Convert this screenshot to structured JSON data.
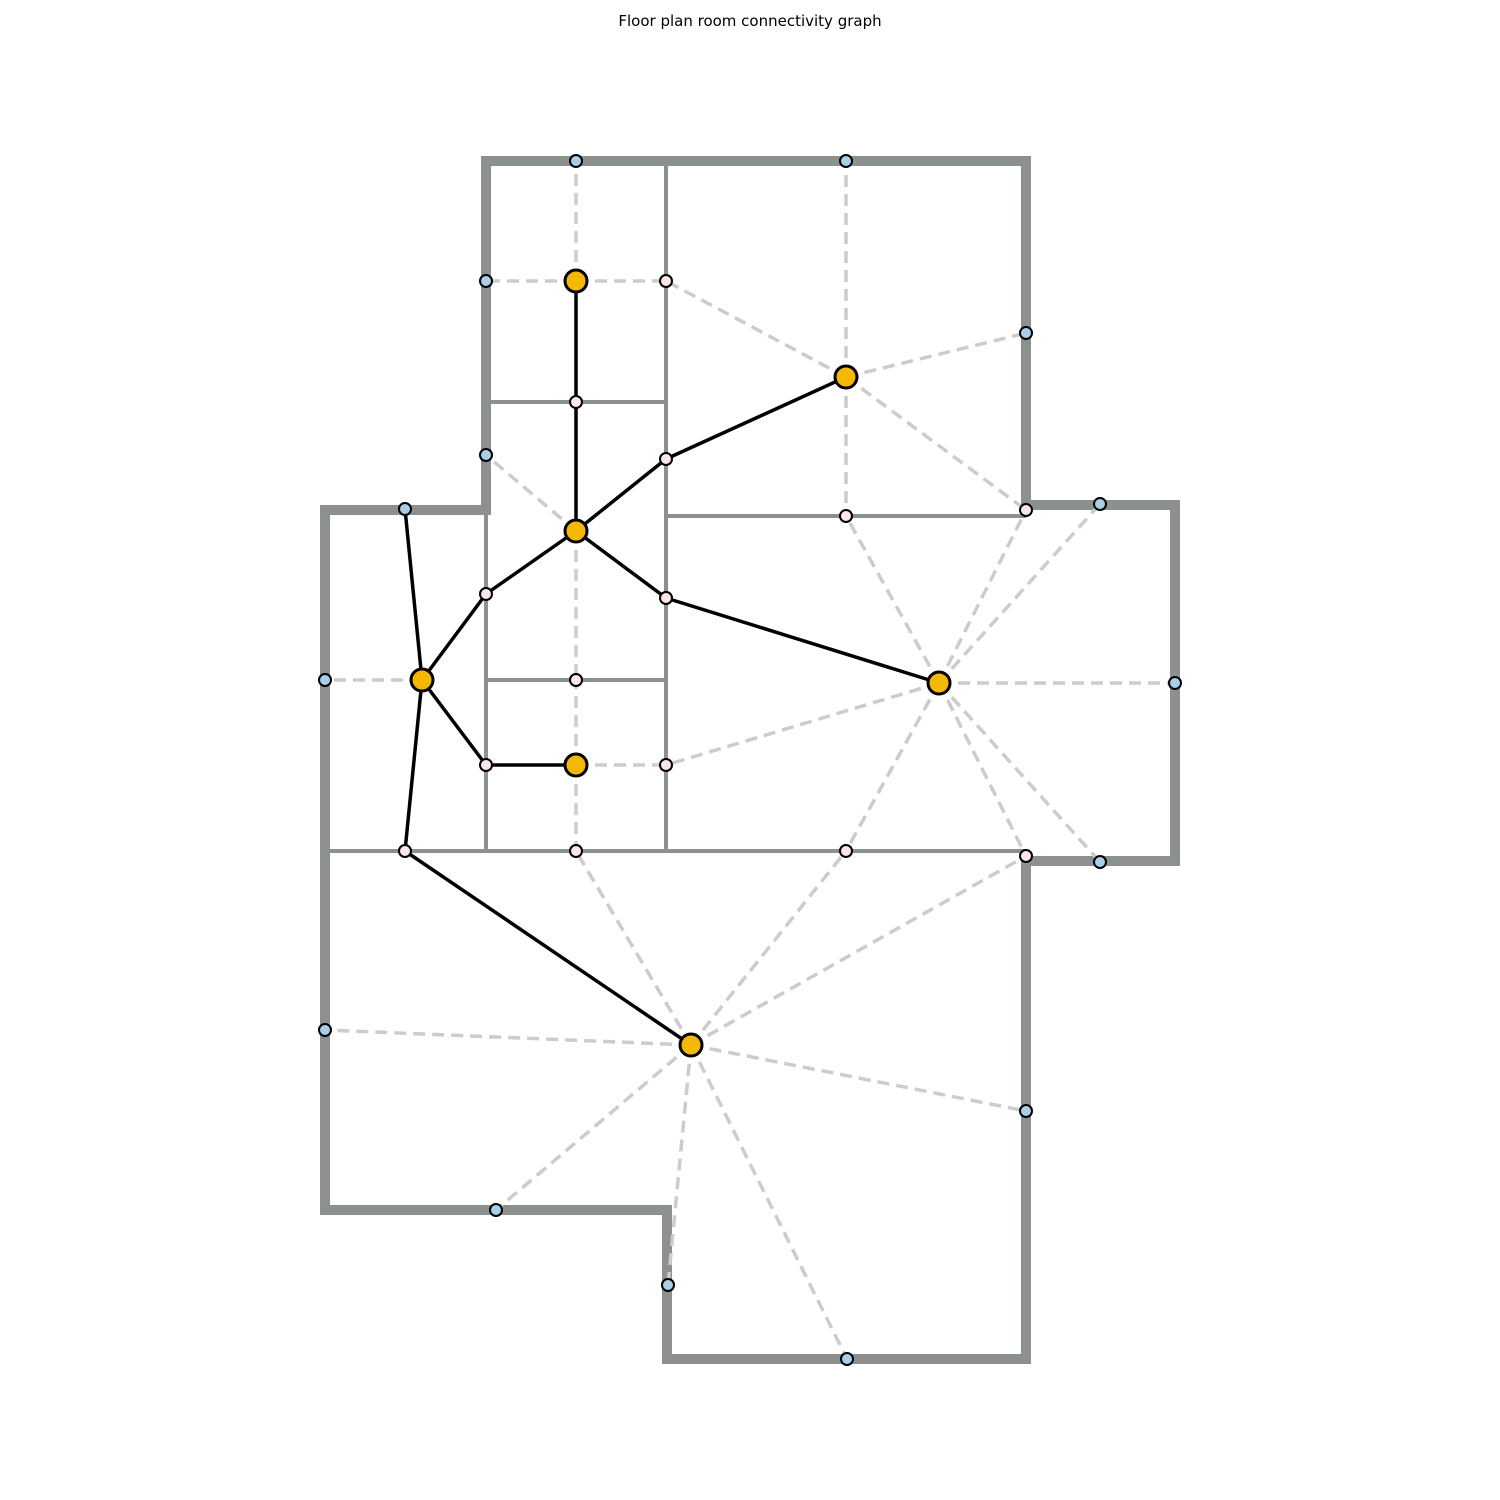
{
  "title": "Floor plan room connectivity graph",
  "colors": {
    "outer_wall": "#8c908f",
    "inner_wall": "#8c908f",
    "door_edge": "#000000",
    "window_edge": "#cccccc",
    "room_node": "#f5b800",
    "door_node": "#fde6e6",
    "window_node": "#a9cfe8",
    "node_outline": "#000000",
    "background": "#ffffff"
  },
  "legend": []
}
